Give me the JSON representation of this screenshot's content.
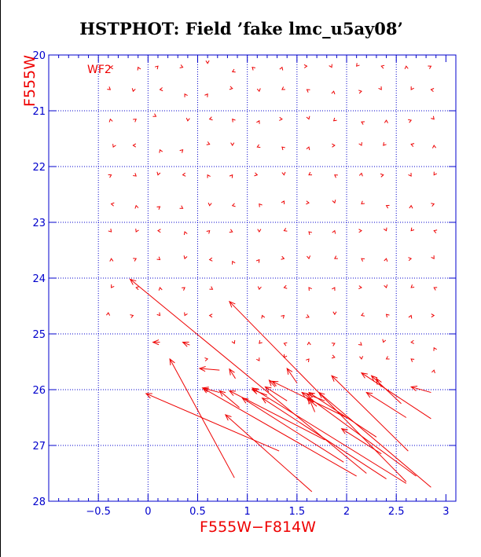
{
  "page": {
    "title": "HSTPHOT: Field ’fake lmc_u5ay08’"
  },
  "chart_data": {
    "type": "vector-field",
    "panel_label": "WF2",
    "xlabel": "F555W−F814W",
    "ylabel": "F555W",
    "xlim": [
      -1.0,
      3.1
    ],
    "ylim": [
      28,
      20
    ],
    "xticks": [
      -0.5,
      0,
      0.5,
      1,
      1.5,
      2,
      2.5,
      3
    ],
    "xtick_labels": [
      "−0.5",
      "0",
      "0.5",
      "1",
      "1.5",
      "2",
      "2.5",
      "3"
    ],
    "yticks": [
      20,
      21,
      22,
      23,
      24,
      25,
      26,
      27,
      28
    ],
    "ytick_labels": [
      "20",
      "21",
      "22",
      "23",
      "24",
      "25",
      "26",
      "27",
      "28"
    ],
    "grid_x": [
      -0.5,
      0,
      0.5,
      1,
      1.5,
      2,
      2.5
    ],
    "grid_y": [
      21,
      22,
      23,
      24,
      25,
      26,
      27
    ],
    "colors": {
      "vectors": "#ee0000",
      "grid": "#0000cc",
      "axes": "#0000cc",
      "labels": "#ee0000",
      "title": "#000000"
    },
    "vectors": [
      {
        "x0": 0.87,
        "y0": 27.58,
        "x1": 0.22,
        "y1": 25.45
      },
      {
        "x0": 1.32,
        "y0": 27.1,
        "x1": -0.02,
        "y1": 26.07
      },
      {
        "x0": 1.65,
        "y0": 27.83,
        "x1": 0.78,
        "y1": 26.45
      },
      {
        "x0": 2.1,
        "y0": 27.55,
        "x1": 0.55,
        "y1": 25.97
      },
      {
        "x0": 2.7,
        "y0": 27.55,
        "x1": 1.55,
        "y1": 26.05
      },
      {
        "x0": 2.85,
        "y0": 27.75,
        "x1": 1.72,
        "y1": 26.05
      },
      {
        "x0": 2.6,
        "y0": 27.68,
        "x1": 1.05,
        "y1": 25.97
      },
      {
        "x0": 2.4,
        "y0": 27.6,
        "x1": 1.15,
        "y1": 26.15
      },
      {
        "x0": 1.97,
        "y0": 27.3,
        "x1": 0.95,
        "y1": 26.15
      },
      {
        "x0": 1.78,
        "y0": 26.9,
        "x1": 0.82,
        "y1": 26.02
      },
      {
        "x0": 2.2,
        "y0": 27.5,
        "x1": -0.18,
        "y1": 24.02
      },
      {
        "x0": 2.6,
        "y0": 27.65,
        "x1": 0.82,
        "y1": 24.42
      },
      {
        "x0": 2.62,
        "y0": 27.1,
        "x1": 1.85,
        "y1": 25.75
      },
      {
        "x0": 2.85,
        "y0": 26.52,
        "x1": 2.15,
        "y1": 25.7
      },
      {
        "x0": 2.6,
        "y0": 26.5,
        "x1": 2.2,
        "y1": 26.05
      },
      {
        "x0": 2.55,
        "y0": 26.25,
        "x1": 2.25,
        "y1": 25.75
      },
      {
        "x0": 2.85,
        "y0": 26.05,
        "x1": 2.65,
        "y1": 25.95
      },
      {
        "x0": 2.3,
        "y0": 26.85,
        "x1": 1.62,
        "y1": 26.05
      },
      {
        "x0": 2.35,
        "y0": 27.15,
        "x1": 1.95,
        "y1": 26.7
      },
      {
        "x0": 2.0,
        "y0": 26.5,
        "x1": 1.25,
        "y1": 25.85
      },
      {
        "x0": 1.7,
        "y0": 26.3,
        "x1": 1.6,
        "y1": 26.15
      },
      {
        "x0": 1.78,
        "y0": 26.2,
        "x1": 1.6,
        "y1": 26.08
      },
      {
        "x0": 1.68,
        "y0": 26.4,
        "x1": 1.62,
        "y1": 26.15
      },
      {
        "x0": 1.4,
        "y0": 26.2,
        "x1": 1.18,
        "y1": 25.95
      },
      {
        "x0": 1.2,
        "y0": 26.1,
        "x1": 1.05,
        "y1": 26.0
      },
      {
        "x0": 0.92,
        "y0": 26.32,
        "x1": 0.72,
        "y1": 26.02
      },
      {
        "x0": 0.72,
        "y0": 26.05,
        "x1": 0.55,
        "y1": 25.97
      },
      {
        "x0": 0.72,
        "y0": 25.65,
        "x1": 0.52,
        "y1": 25.62
      },
      {
        "x0": 0.88,
        "y0": 25.8,
        "x1": 0.82,
        "y1": 25.63
      },
      {
        "x0": 1.5,
        "y0": 25.88,
        "x1": 1.4,
        "y1": 25.62
      },
      {
        "x0": 1.28,
        "y0": 25.95,
        "x1": 1.22,
        "y1": 25.83
      },
      {
        "x0": 0.12,
        "y0": 25.15,
        "x1": 0.05,
        "y1": 25.15
      },
      {
        "x0": 0.42,
        "y0": 25.2,
        "x1": 0.35,
        "y1": 25.15
      },
      {
        "x0": 2.35,
        "y0": 25.95,
        "x1": 2.3,
        "y1": 25.8
      }
    ],
    "chevrons": [
      [
        -0.38,
        20.22
      ],
      [
        -0.1,
        20.22
      ],
      [
        0.1,
        20.2
      ],
      [
        0.35,
        20.22
      ],
      [
        0.6,
        20.15
      ],
      [
        0.85,
        20.3
      ],
      [
        1.05,
        20.22
      ],
      [
        1.35,
        20.22
      ],
      [
        1.6,
        20.2
      ],
      [
        1.85,
        20.22
      ],
      [
        2.1,
        20.2
      ],
      [
        2.35,
        20.2
      ],
      [
        2.6,
        20.2
      ],
      [
        2.85,
        20.2
      ],
      [
        -0.38,
        20.62
      ],
      [
        -0.15,
        20.65
      ],
      [
        0.12,
        20.62
      ],
      [
        0.37,
        20.7
      ],
      [
        0.6,
        20.7
      ],
      [
        0.85,
        20.6
      ],
      [
        1.12,
        20.65
      ],
      [
        1.35,
        20.62
      ],
      [
        1.6,
        20.62
      ],
      [
        1.87,
        20.65
      ],
      [
        2.15,
        20.65
      ],
      [
        2.35,
        20.62
      ],
      [
        2.65,
        20.62
      ],
      [
        2.85,
        20.62
      ],
      [
        -0.38,
        21.15
      ],
      [
        -0.12,
        21.15
      ],
      [
        0.08,
        21.1
      ],
      [
        0.4,
        21.18
      ],
      [
        0.62,
        21.15
      ],
      [
        0.85,
        21.15
      ],
      [
        1.12,
        21.18
      ],
      [
        1.35,
        21.15
      ],
      [
        1.62,
        21.15
      ],
      [
        1.87,
        21.18
      ],
      [
        2.15,
        21.2
      ],
      [
        2.4,
        21.17
      ],
      [
        2.65,
        21.17
      ],
      [
        2.88,
        21.15
      ],
      [
        -0.35,
        21.65
      ],
      [
        -0.15,
        21.62
      ],
      [
        0.12,
        21.7
      ],
      [
        0.35,
        21.7
      ],
      [
        0.62,
        21.6
      ],
      [
        0.85,
        21.62
      ],
      [
        1.1,
        21.65
      ],
      [
        1.35,
        21.65
      ],
      [
        1.62,
        21.65
      ],
      [
        1.88,
        21.62
      ],
      [
        2.15,
        21.62
      ],
      [
        2.37,
        21.62
      ],
      [
        2.65,
        21.6
      ],
      [
        2.88,
        21.62
      ],
      [
        -0.37,
        22.15
      ],
      [
        -0.12,
        22.17
      ],
      [
        0.1,
        22.15
      ],
      [
        0.35,
        22.15
      ],
      [
        0.6,
        22.15
      ],
      [
        0.85,
        22.15
      ],
      [
        1.1,
        22.15
      ],
      [
        1.37,
        22.15
      ],
      [
        1.62,
        22.15
      ],
      [
        1.88,
        22.15
      ],
      [
        2.15,
        22.12
      ],
      [
        2.37,
        22.15
      ],
      [
        2.65,
        22.17
      ],
      [
        2.88,
        22.15
      ],
      [
        -0.37,
        22.67
      ],
      [
        -0.12,
        22.7
      ],
      [
        0.12,
        22.72
      ],
      [
        0.35,
        22.75
      ],
      [
        0.62,
        22.7
      ],
      [
        0.85,
        22.7
      ],
      [
        1.12,
        22.67
      ],
      [
        1.37,
        22.62
      ],
      [
        1.62,
        22.65
      ],
      [
        1.88,
        22.65
      ],
      [
        2.15,
        22.67
      ],
      [
        2.4,
        22.7
      ],
      [
        2.65,
        22.7
      ],
      [
        2.88,
        22.67
      ],
      [
        -0.37,
        23.17
      ],
      [
        -0.12,
        23.17
      ],
      [
        0.1,
        23.15
      ],
      [
        0.37,
        23.17
      ],
      [
        0.62,
        23.15
      ],
      [
        0.85,
        23.17
      ],
      [
        1.12,
        23.17
      ],
      [
        1.37,
        23.15
      ],
      [
        1.62,
        23.17
      ],
      [
        1.88,
        23.15
      ],
      [
        2.15,
        23.15
      ],
      [
        2.4,
        23.15
      ],
      [
        2.65,
        23.15
      ],
      [
        2.88,
        23.15
      ],
      [
        -0.37,
        23.65
      ],
      [
        -0.12,
        23.65
      ],
      [
        0.12,
        23.67
      ],
      [
        0.37,
        23.65
      ],
      [
        0.62,
        23.67
      ],
      [
        0.85,
        23.7
      ],
      [
        1.12,
        23.67
      ],
      [
        1.37,
        23.65
      ],
      [
        1.62,
        23.65
      ],
      [
        1.88,
        23.65
      ],
      [
        2.15,
        23.65
      ],
      [
        2.4,
        23.65
      ],
      [
        2.65,
        23.65
      ],
      [
        2.88,
        23.65
      ],
      [
        -0.37,
        24.17
      ],
      [
        -0.12,
        24.17
      ],
      [
        0.12,
        24.17
      ],
      [
        0.37,
        24.17
      ],
      [
        0.65,
        24.2
      ],
      [
        1.12,
        24.2
      ],
      [
        1.37,
        24.17
      ],
      [
        1.62,
        24.17
      ],
      [
        1.88,
        24.17
      ],
      [
        2.15,
        24.17
      ],
      [
        2.4,
        24.17
      ],
      [
        2.65,
        24.17
      ],
      [
        2.88,
        24.17
      ],
      [
        -0.4,
        24.62
      ],
      [
        -0.15,
        24.67
      ],
      [
        0.12,
        24.67
      ],
      [
        0.37,
        24.67
      ],
      [
        0.62,
        24.67
      ],
      [
        1.15,
        24.67
      ],
      [
        1.37,
        24.67
      ],
      [
        1.62,
        24.7
      ],
      [
        1.88,
        24.65
      ],
      [
        2.15,
        24.67
      ],
      [
        2.4,
        24.65
      ],
      [
        2.65,
        24.67
      ],
      [
        2.88,
        24.67
      ],
      [
        0.87,
        25.17
      ],
      [
        1.12,
        25.17
      ],
      [
        1.37,
        25.17
      ],
      [
        1.62,
        25.15
      ],
      [
        1.88,
        25.17
      ],
      [
        2.15,
        25.2
      ],
      [
        2.37,
        25.15
      ],
      [
        2.65,
        25.15
      ],
      [
        2.88,
        25.25
      ],
      [
        1.62,
        25.45
      ],
      [
        1.88,
        25.42
      ],
      [
        2.15,
        25.45
      ],
      [
        2.4,
        25.45
      ],
      [
        2.65,
        25.45
      ],
      [
        2.88,
        25.65
      ],
      [
        0.6,
        25.45
      ],
      [
        1.12,
        25.48
      ],
      [
        1.37,
        25.42
      ]
    ]
  }
}
